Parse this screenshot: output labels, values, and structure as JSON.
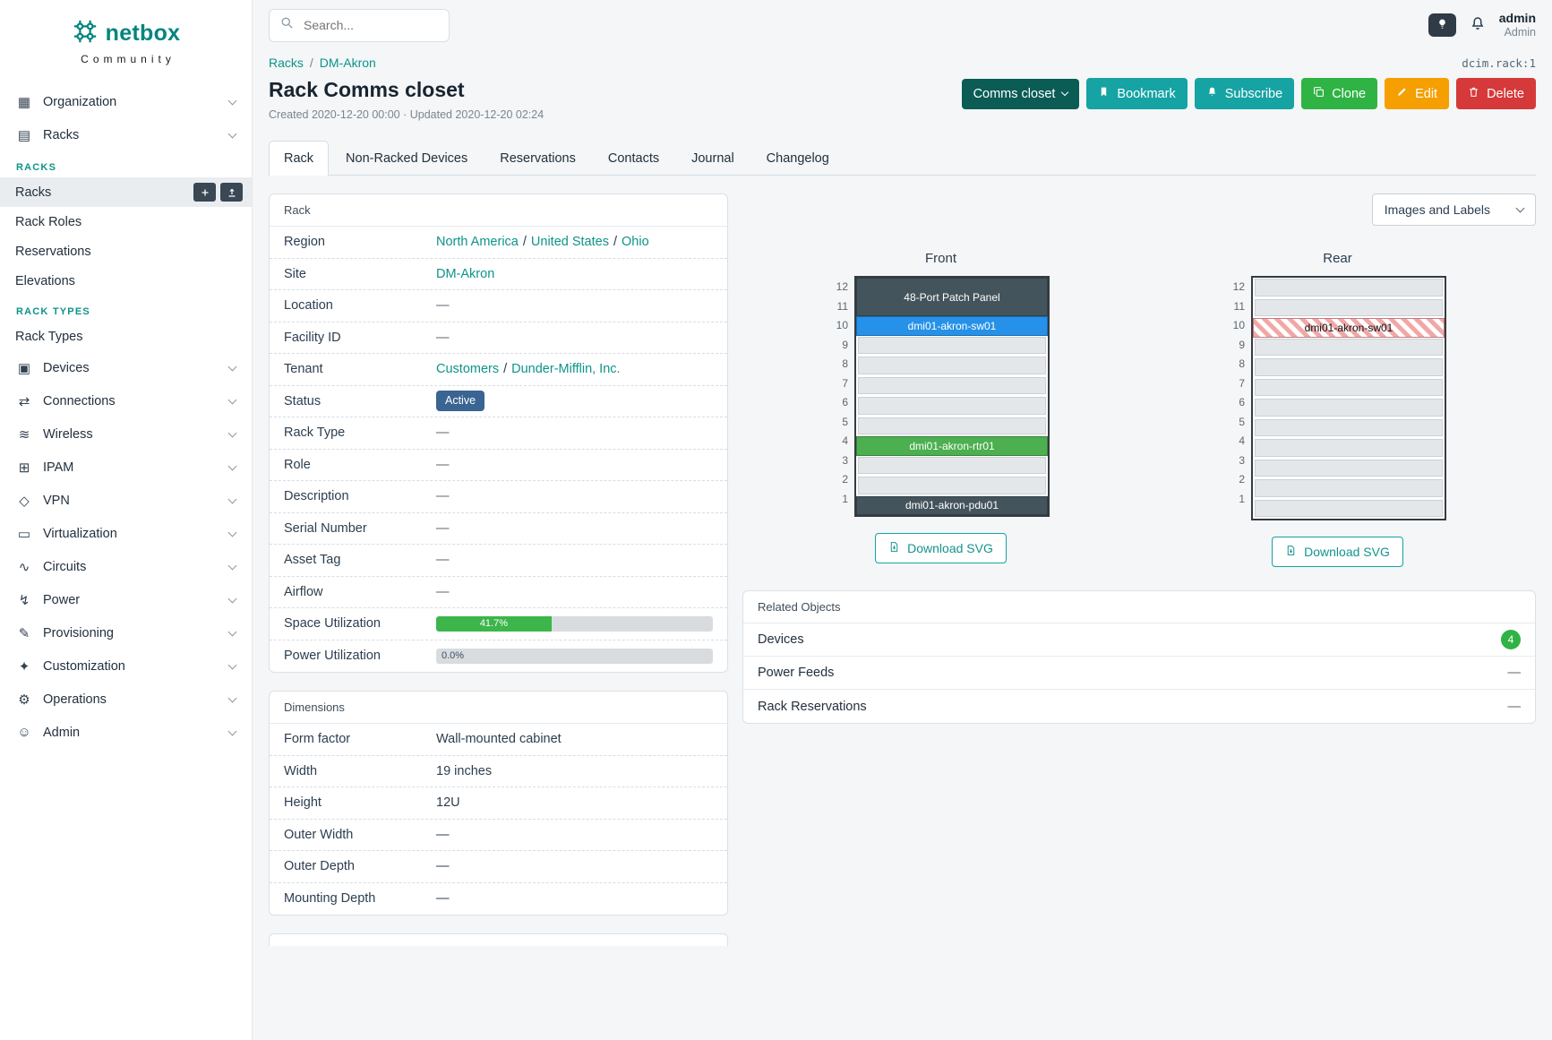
{
  "brand": {
    "name": "netbox",
    "tagline": "Community"
  },
  "topbar": {
    "search_placeholder": "Search...",
    "user": {
      "name": "admin",
      "role": "Admin"
    }
  },
  "sidebar": {
    "organization": {
      "label": "Organization",
      "glyph": "▦"
    },
    "racks": {
      "label": "Racks",
      "glyph": "▤"
    },
    "racks_section": {
      "header": "RACKS",
      "items": [
        {
          "label": "Racks"
        },
        {
          "label": "Rack Roles"
        },
        {
          "label": "Reservations"
        },
        {
          "label": "Elevations"
        }
      ],
      "types_header": "RACK TYPES",
      "types_items": [
        {
          "label": "Rack Types"
        }
      ]
    },
    "groups": [
      {
        "label": "Devices",
        "glyph": "▣"
      },
      {
        "label": "Connections",
        "glyph": "⇄"
      },
      {
        "label": "Wireless",
        "glyph": "≋"
      },
      {
        "label": "IPAM",
        "glyph": "⊞"
      },
      {
        "label": "VPN",
        "glyph": "◇"
      },
      {
        "label": "Virtualization",
        "glyph": "▭"
      },
      {
        "label": "Circuits",
        "glyph": "∿"
      },
      {
        "label": "Power",
        "glyph": "↯"
      },
      {
        "label": "Provisioning",
        "glyph": "✎"
      },
      {
        "label": "Customization",
        "glyph": "✦"
      },
      {
        "label": "Operations",
        "glyph": "⚙"
      },
      {
        "label": "Admin",
        "glyph": "☺"
      }
    ]
  },
  "breadcrumb": {
    "items": [
      "Racks",
      "DM-Akron"
    ],
    "object_ref": "dcim.rack:1"
  },
  "page": {
    "title": "Rack Comms closet",
    "meta": "Created 2020-12-20 00:00 · Updated 2020-12-20 02:24"
  },
  "actions": {
    "view_select": "Comms closet",
    "bookmark": "Bookmark",
    "subscribe": "Subscribe",
    "clone": "Clone",
    "edit": "Edit",
    "delete": "Delete"
  },
  "tabs": [
    {
      "label": "Rack"
    },
    {
      "label": "Non-Racked Devices"
    },
    {
      "label": "Reservations"
    },
    {
      "label": "Contacts"
    },
    {
      "label": "Journal"
    },
    {
      "label": "Changelog"
    }
  ],
  "rack_card": {
    "header": "Rack",
    "rows": [
      {
        "label": "Region",
        "links": [
          "North America",
          "United States",
          "Ohio"
        ]
      },
      {
        "label": "Site",
        "links": [
          "DM-Akron"
        ]
      },
      {
        "label": "Location",
        "value": "—"
      },
      {
        "label": "Facility ID",
        "value": "—"
      },
      {
        "label": "Tenant",
        "links": [
          "Customers",
          "Dunder-Mifflin, Inc."
        ]
      },
      {
        "label": "Status",
        "badge": "Active"
      },
      {
        "label": "Rack Type",
        "value": "—"
      },
      {
        "label": "Role",
        "value": "—"
      },
      {
        "label": "Description",
        "value": "—"
      },
      {
        "label": "Serial Number",
        "value": "—"
      },
      {
        "label": "Asset Tag",
        "value": "—"
      },
      {
        "label": "Airflow",
        "value": "—"
      },
      {
        "label": "Space Utilization",
        "value": "41.7%",
        "pct": 41.7
      },
      {
        "label": "Power Utilization",
        "value": "0.0%",
        "pct": 0
      }
    ]
  },
  "dimensions_card": {
    "header": "Dimensions",
    "rows": [
      {
        "label": "Form factor",
        "value": "Wall-mounted cabinet"
      },
      {
        "label": "Width",
        "value": "19 inches"
      },
      {
        "label": "Height",
        "value": "12U"
      },
      {
        "label": "Outer Width",
        "value": "—"
      },
      {
        "label": "Outer Depth",
        "value": "—"
      },
      {
        "label": "Mounting Depth",
        "value": "—"
      }
    ]
  },
  "elevation": {
    "view_options_label": "Images and Labels",
    "units": [
      "12",
      "11",
      "10",
      "9",
      "8",
      "7",
      "6",
      "5",
      "4",
      "3",
      "2",
      "1"
    ],
    "front": {
      "title": "Front",
      "download_label": "Download SVG"
    },
    "rear": {
      "title": "Rear",
      "download_label": "Download SVG"
    },
    "devices": {
      "patch_panel": "48-Port Patch Panel",
      "switch": "dmi01-akron-sw01",
      "router": "dmi01-akron-rtr01",
      "pdu": "dmi01-akron-pdu01",
      "switch_rear": "dmi01-akron-sw01"
    }
  },
  "related": {
    "header": "Related Objects",
    "rows": [
      {
        "label": "Devices",
        "count": "4"
      },
      {
        "label": "Power Feeds",
        "value": "—"
      },
      {
        "label": "Rack Reservations",
        "value": "—"
      }
    ]
  },
  "colors": {
    "brand_teal": "#00857e",
    "link_teal": "#0d9488",
    "teal_button": "#16a3a3",
    "dark_teal_button": "#0a5c55",
    "green_button": "#2fb344",
    "orange_button": "#f59f00",
    "red_button": "#d63939",
    "status_active_badge": "#3a6491",
    "progress_green": "#3cb54a",
    "device_dark": "#44545c",
    "device_blue": "#2691e8",
    "device_green": "#4caf50",
    "count_badge_green": "#2fb344"
  }
}
